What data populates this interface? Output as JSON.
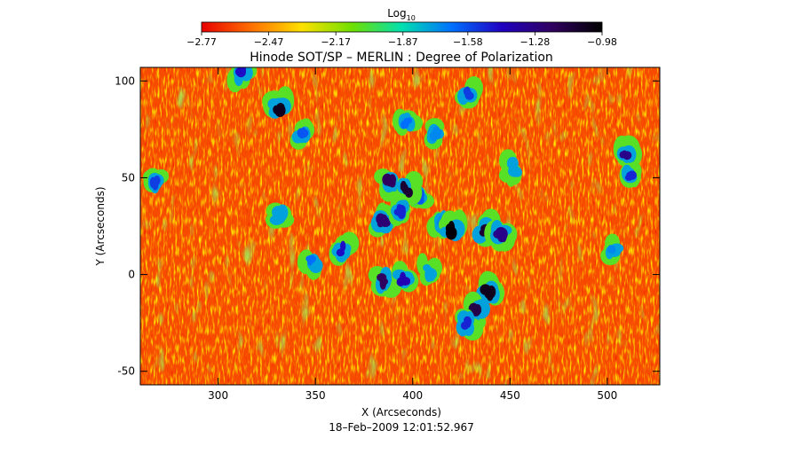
{
  "chart_data": {
    "type": "heatmap",
    "title": "Hinode SOT/SP – MERLIN : Degree of Polarization",
    "xlabel": "X (Arcseconds)",
    "ylabel": "Y (Arcseconds)",
    "footer": "18–Feb–2009 12:01:52.967",
    "xlim": [
      260,
      527
    ],
    "ylim": [
      -57,
      107
    ],
    "x_ticks": [
      300,
      350,
      400,
      450,
      500
    ],
    "y_ticks": [
      -50,
      0,
      50,
      100
    ],
    "colorbar": {
      "label_base": "Log",
      "label_sub": "10",
      "min": -2.77,
      "max": -0.98,
      "tick_values": [
        -2.77,
        -2.47,
        -2.17,
        -1.87,
        -1.58,
        -1.28,
        -0.98
      ],
      "tick_labels": [
        "−2.77",
        "−2.47",
        "−2.17",
        "−1.87",
        "−1.58",
        "−1.28",
        "−0.98"
      ],
      "colors": [
        "#e80000",
        "#ff7000",
        "#ffe000",
        "#70e000",
        "#00e0b0",
        "#0070ff",
        "#2000c0",
        "#300060",
        "#000000"
      ]
    },
    "background_value": -2.62,
    "strong_polarization_patches": [
      {
        "x": 331,
        "y": 86,
        "level": -1.05
      },
      {
        "x": 312,
        "y": 104,
        "level": -1.45
      },
      {
        "x": 343,
        "y": 73,
        "level": -1.6
      },
      {
        "x": 397,
        "y": 78,
        "level": -1.65
      },
      {
        "x": 428,
        "y": 93,
        "level": -1.55
      },
      {
        "x": 412,
        "y": 73,
        "level": -1.7
      },
      {
        "x": 268,
        "y": 47,
        "level": -1.55
      },
      {
        "x": 403,
        "y": 40,
        "level": -1.6
      },
      {
        "x": 388,
        "y": 48,
        "level": -1.2
      },
      {
        "x": 397,
        "y": 44,
        "level": -1.1
      },
      {
        "x": 385,
        "y": 27,
        "level": -1.25
      },
      {
        "x": 394,
        "y": 33,
        "level": -1.5
      },
      {
        "x": 414,
        "y": 27,
        "level": -1.7
      },
      {
        "x": 420,
        "y": 23,
        "level": -1.0
      },
      {
        "x": 437,
        "y": 23,
        "level": -1.1
      },
      {
        "x": 445,
        "y": 21,
        "level": -1.3
      },
      {
        "x": 364,
        "y": 13,
        "level": -1.45
      },
      {
        "x": 385,
        "y": -3,
        "level": -1.2
      },
      {
        "x": 395,
        "y": -3,
        "level": -1.4
      },
      {
        "x": 439,
        "y": -9,
        "level": -1.05
      },
      {
        "x": 433,
        "y": -20,
        "level": -1.15
      },
      {
        "x": 428,
        "y": -25,
        "level": -1.5
      },
      {
        "x": 509,
        "y": 61,
        "level": -1.3
      },
      {
        "x": 512,
        "y": 50,
        "level": -1.5
      },
      {
        "x": 503,
        "y": 13,
        "level": -1.7
      },
      {
        "x": 348,
        "y": 7,
        "level": -1.65
      },
      {
        "x": 452,
        "y": 55,
        "level": -1.75
      },
      {
        "x": 332,
        "y": 30,
        "level": -1.75
      },
      {
        "x": 408,
        "y": 2,
        "level": -1.75
      }
    ]
  }
}
